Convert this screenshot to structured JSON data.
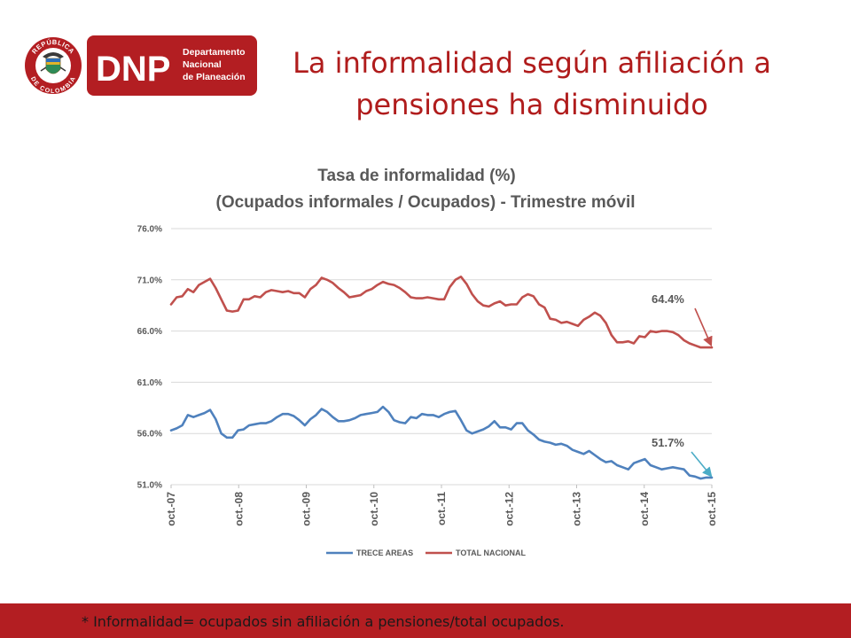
{
  "header": {
    "logo": {
      "icon": "colombia-coat-of-arms-seal",
      "seal_text_top": "REPÚBLICA",
      "seal_text_bottom": "DE COLOMBIA",
      "acronym": "DNP",
      "name_lines": [
        "Departamento",
        "Nacional",
        "de Planeación"
      ],
      "color": "#b31e22"
    },
    "title_lines": [
      "La informalidad según afiliación a",
      "pensiones ha disminuido"
    ],
    "title_color": "#b01c1c"
  },
  "chart_data": {
    "type": "line",
    "title_lines": [
      "Tasa de informalidad (%)",
      "(Ocupados informales / Ocupados) - Trimestre móvil"
    ],
    "xlabel": "",
    "ylabel": "",
    "ylim": [
      51,
      76
    ],
    "yticks": [
      76,
      71,
      66,
      61,
      56,
      51
    ],
    "ytick_labels": [
      "76.0%",
      "71.0%",
      "66.0%",
      "61.0%",
      "56.0%",
      "51.0%"
    ],
    "xticks": [
      "oct.-07",
      "oct.-08",
      "oct.-09",
      "oct.-10",
      "oct.-11",
      "oct.-12",
      "oct.-13",
      "oct.-14",
      "oct.-15"
    ],
    "x_start": "oct.-07",
    "x_end": "oct.-15",
    "grid": true,
    "legend": "bottom",
    "series": [
      {
        "name": "TRECE AREAS",
        "color": "#4f81bd",
        "values": [
          56.3,
          56.5,
          56.8,
          57.8,
          57.6,
          57.8,
          58.0,
          58.3,
          57.4,
          56.0,
          55.6,
          55.6,
          56.3,
          56.4,
          56.8,
          56.9,
          57.0,
          57.0,
          57.2,
          57.6,
          57.9,
          57.9,
          57.7,
          57.3,
          56.8,
          57.4,
          57.8,
          58.4,
          58.1,
          57.6,
          57.2,
          57.2,
          57.3,
          57.5,
          57.8,
          57.9,
          58.0,
          58.1,
          58.6,
          58.1,
          57.3,
          57.1,
          57.0,
          57.6,
          57.5,
          57.9,
          57.8,
          57.8,
          57.6,
          57.9,
          58.1,
          58.2,
          57.3,
          56.3,
          56.0,
          56.2,
          56.4,
          56.7,
          57.2,
          56.6,
          56.6,
          56.4,
          57.0,
          57.0,
          56.3,
          55.9,
          55.4,
          55.2,
          55.1,
          54.9,
          55.0,
          54.8,
          54.4,
          54.2,
          54.0,
          54.3,
          53.9,
          53.5,
          53.2,
          53.3,
          52.9,
          52.7,
          52.5,
          53.1,
          53.3,
          53.5,
          52.9,
          52.7,
          52.5,
          52.6,
          52.7,
          52.6,
          52.5,
          51.9,
          51.8,
          51.6,
          51.7,
          51.7
        ]
      },
      {
        "name": "TOTAL NACIONAL",
        "color": "#c0504d",
        "values": [
          68.6,
          69.3,
          69.4,
          70.1,
          69.8,
          70.5,
          70.8,
          71.1,
          70.2,
          69.1,
          68.0,
          67.9,
          68.0,
          69.1,
          69.1,
          69.4,
          69.3,
          69.8,
          70.0,
          69.9,
          69.8,
          69.9,
          69.7,
          69.7,
          69.3,
          70.1,
          70.5,
          71.2,
          71.0,
          70.7,
          70.2,
          69.8,
          69.3,
          69.4,
          69.5,
          69.9,
          70.1,
          70.5,
          70.8,
          70.6,
          70.5,
          70.2,
          69.8,
          69.3,
          69.2,
          69.2,
          69.3,
          69.2,
          69.1,
          69.1,
          70.3,
          71.0,
          71.3,
          70.6,
          69.6,
          68.9,
          68.5,
          68.4,
          68.7,
          68.9,
          68.5,
          68.6,
          68.6,
          69.3,
          69.6,
          69.4,
          68.6,
          68.3,
          67.2,
          67.1,
          66.8,
          66.9,
          66.7,
          66.5,
          67.1,
          67.4,
          67.8,
          67.5,
          66.8,
          65.6,
          64.9,
          64.9,
          65.0,
          64.8,
          65.5,
          65.4,
          66.0,
          65.9,
          66.0,
          66.0,
          65.9,
          65.6,
          65.1,
          64.8,
          64.6,
          64.4,
          64.4,
          64.4
        ]
      }
    ],
    "annotations": [
      {
        "text": "64.4%",
        "series": "TOTAL NACIONAL",
        "value": 64.4
      },
      {
        "text": "51.7%",
        "series": "TRECE AREAS",
        "value": 51.7
      }
    ]
  },
  "footer": {
    "text": "* Informalidad= ocupados sin afiliación a pensiones/total ocupados.",
    "color": "#b31e22"
  }
}
